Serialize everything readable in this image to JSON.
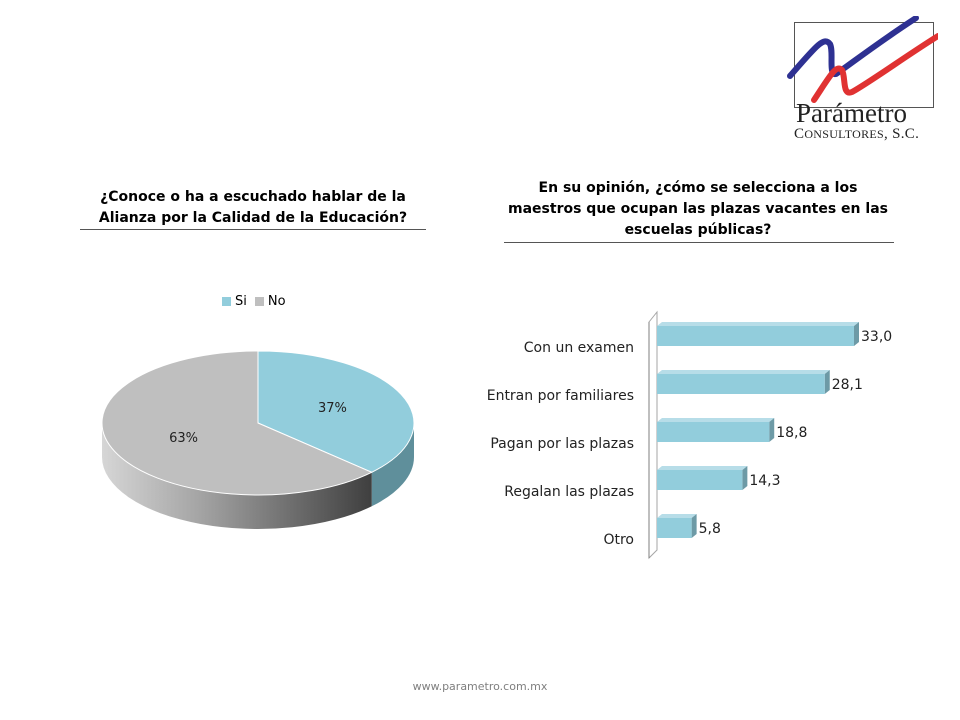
{
  "logo": {
    "name": "Parámetro",
    "sub": "Consultores, S.C."
  },
  "left": {
    "title": "¿Conoce o ha a escuchado hablar de la Alianza por la Calidad de la Educación?"
  },
  "right": {
    "title": "En su opinión, ¿cómo se selecciona a los maestros que ocupan las plazas vacantes en las escuelas públicas?"
  },
  "footer": {
    "url": "www.parametro.com.mx"
  },
  "colors": {
    "si": "#92cddc",
    "no": "#bfbfbf",
    "bar": "#92cddc",
    "bar_dark": "#6d9aa6"
  },
  "chart_data": [
    {
      "type": "pie",
      "title": "¿Conoce o ha a escuchado hablar de la Alianza por la Calidad de la Educación?",
      "categories": [
        "Si",
        "No"
      ],
      "values": [
        37,
        63
      ],
      "labels": [
        "37%",
        "63%"
      ],
      "legend": "top"
    },
    {
      "type": "bar",
      "orientation": "horizontal",
      "title": "En su opinión, ¿cómo se selecciona a los maestros que ocupan las plazas vacantes en las escuelas públicas?",
      "categories": [
        "Con un examen",
        "Entran por familiares",
        "Pagan por las plazas",
        "Regalan las plazas",
        "Otro"
      ],
      "values": [
        33.0,
        28.1,
        18.8,
        14.3,
        5.8
      ],
      "labels": [
        "33,0",
        "28,1",
        "18,8",
        "14,3",
        "5,8"
      ],
      "xlim": [
        0,
        33
      ]
    }
  ]
}
